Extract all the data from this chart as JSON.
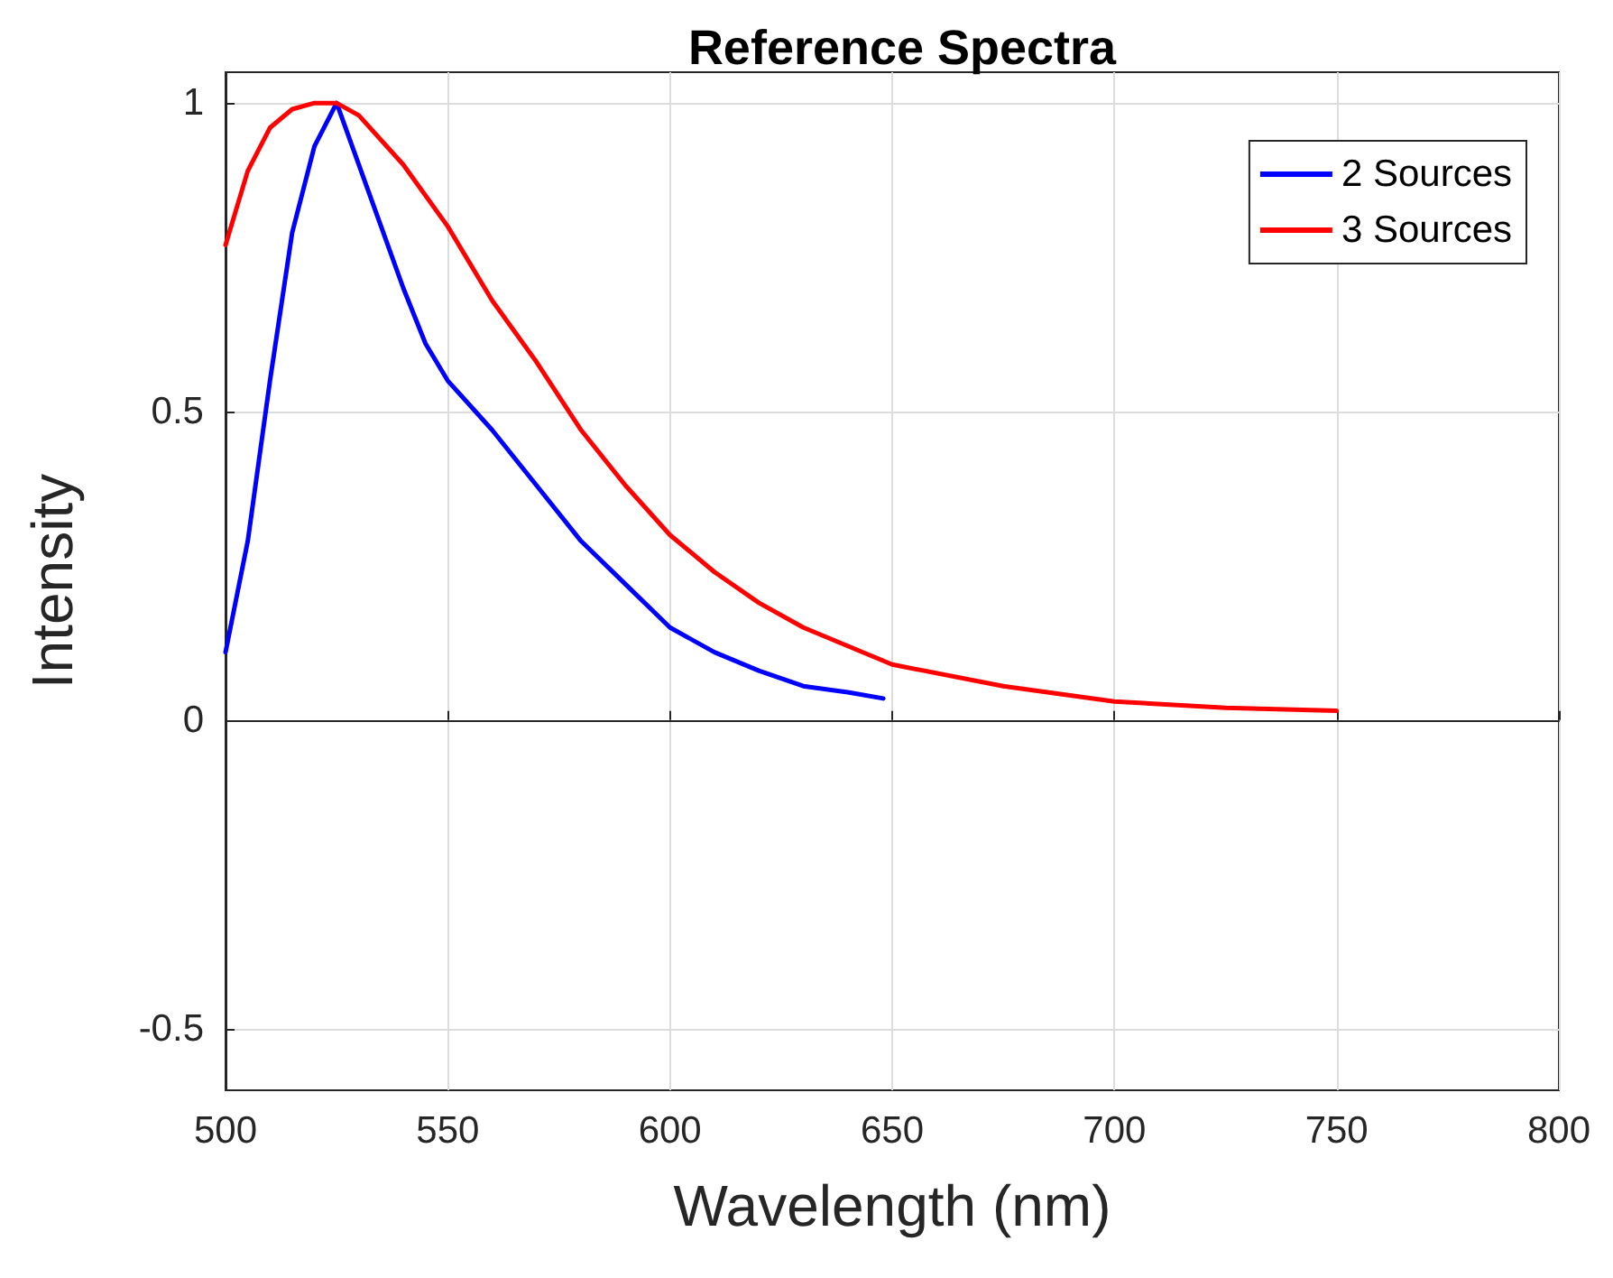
{
  "chart_data": {
    "type": "line",
    "title": "Reference Spectra",
    "xlabel": "Wavelength (nm)",
    "ylabel": "Intensity",
    "xlim": [
      500,
      800
    ],
    "xticks": [
      500,
      550,
      600,
      650,
      700,
      750,
      800
    ],
    "ylim": [
      -0.6,
      1.05
    ],
    "yticks": [
      -0.5,
      0,
      0.5,
      1
    ],
    "grid": true,
    "legend": "top right",
    "marker": "none",
    "line_style": "solid",
    "series": [
      {
        "name": "2 Sources",
        "color": "#0000ff",
        "x": [
          500,
          505,
          510,
          515,
          520,
          525,
          530,
          535,
          540,
          545,
          550,
          560,
          570,
          580,
          590,
          600,
          610,
          620,
          630,
          640,
          648
        ],
        "values": [
          0.11,
          0.29,
          0.55,
          0.79,
          0.93,
          1.0,
          0.9,
          0.8,
          0.7,
          0.61,
          0.55,
          0.47,
          0.38,
          0.29,
          0.22,
          0.15,
          0.11,
          0.08,
          0.055,
          0.045,
          0.035
        ]
      },
      {
        "name": "3 Sources",
        "color": "#ff0000",
        "x": [
          500,
          505,
          510,
          515,
          520,
          525,
          530,
          540,
          550,
          560,
          570,
          580,
          590,
          600,
          610,
          620,
          630,
          640,
          650,
          675,
          700,
          725,
          750
        ],
        "values": [
          0.77,
          0.89,
          0.96,
          0.99,
          1.0,
          1.0,
          0.98,
          0.9,
          0.8,
          0.68,
          0.58,
          0.47,
          0.38,
          0.3,
          0.24,
          0.19,
          0.15,
          0.12,
          0.09,
          0.055,
          0.03,
          0.02,
          0.015
        ]
      }
    ]
  }
}
